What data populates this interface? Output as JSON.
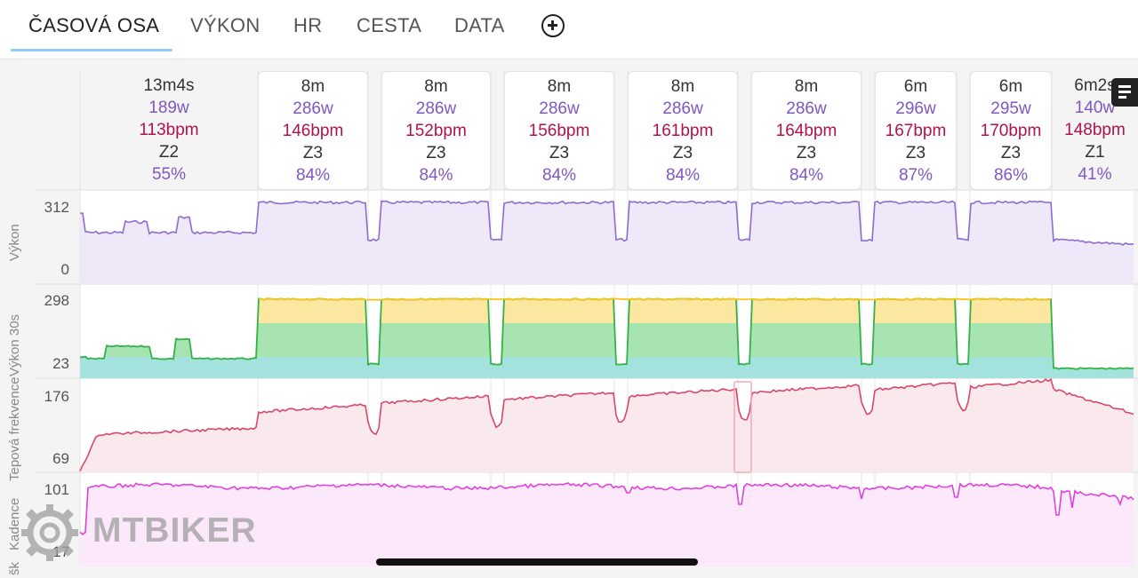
{
  "tabs": [
    {
      "label": "ČASOVÁ OSA",
      "active": true
    },
    {
      "label": "VÝKON",
      "active": false
    },
    {
      "label": "HR",
      "active": false
    },
    {
      "label": "CESTA",
      "active": false
    },
    {
      "label": "DATA",
      "active": false
    }
  ],
  "add_tab_icon": "plus-circle-icon",
  "comment_icon": "comment-icon",
  "laps": [
    {
      "duration": "13m4s",
      "power": "189w",
      "hr": "113bpm",
      "zone": "Z2",
      "pct": "55%",
      "selected": false
    },
    {
      "duration": "8m",
      "power": "286w",
      "hr": "146bpm",
      "zone": "Z3",
      "pct": "84%",
      "selected": true
    },
    {
      "duration": "8m",
      "power": "286w",
      "hr": "152bpm",
      "zone": "Z3",
      "pct": "84%",
      "selected": true
    },
    {
      "duration": "8m",
      "power": "286w",
      "hr": "156bpm",
      "zone": "Z3",
      "pct": "84%",
      "selected": true
    },
    {
      "duration": "8m",
      "power": "286w",
      "hr": "161bpm",
      "zone": "Z3",
      "pct": "84%",
      "selected": true
    },
    {
      "duration": "8m",
      "power": "286w",
      "hr": "164bpm",
      "zone": "Z3",
      "pct": "84%",
      "selected": true
    },
    {
      "duration": "6m",
      "power": "296w",
      "hr": "167bpm",
      "zone": "Z3",
      "pct": "87%",
      "selected": true
    },
    {
      "duration": "6m",
      "power": "295w",
      "hr": "170bpm",
      "zone": "Z3",
      "pct": "86%",
      "selected": true
    },
    {
      "duration": "6m2s",
      "power": "140w",
      "hr": "148bpm",
      "zone": "Z1",
      "pct": "41%",
      "selected": false
    }
  ],
  "charts": {
    "power": {
      "title": "Výkon",
      "ymax": "312",
      "ymin": "0",
      "color": "#8e6bd0"
    },
    "power30": {
      "title": "Výkon 30s",
      "ymax": "298",
      "ymin": "23",
      "colors": {
        "top": "#f5c518",
        "mid": "#33b249",
        "low": "#20a39e"
      }
    },
    "hr": {
      "title": "Tepová frekvence",
      "ymax": "176",
      "ymin": "69",
      "color": "#d8476a"
    },
    "cadence": {
      "title": "Kadence",
      "ymax": "101",
      "ymin": "17",
      "color": "#e040e0"
    },
    "cut_label": "šk"
  },
  "watermark": {
    "text": "MTBIKER",
    "icon": "gear-logo-icon"
  }
}
